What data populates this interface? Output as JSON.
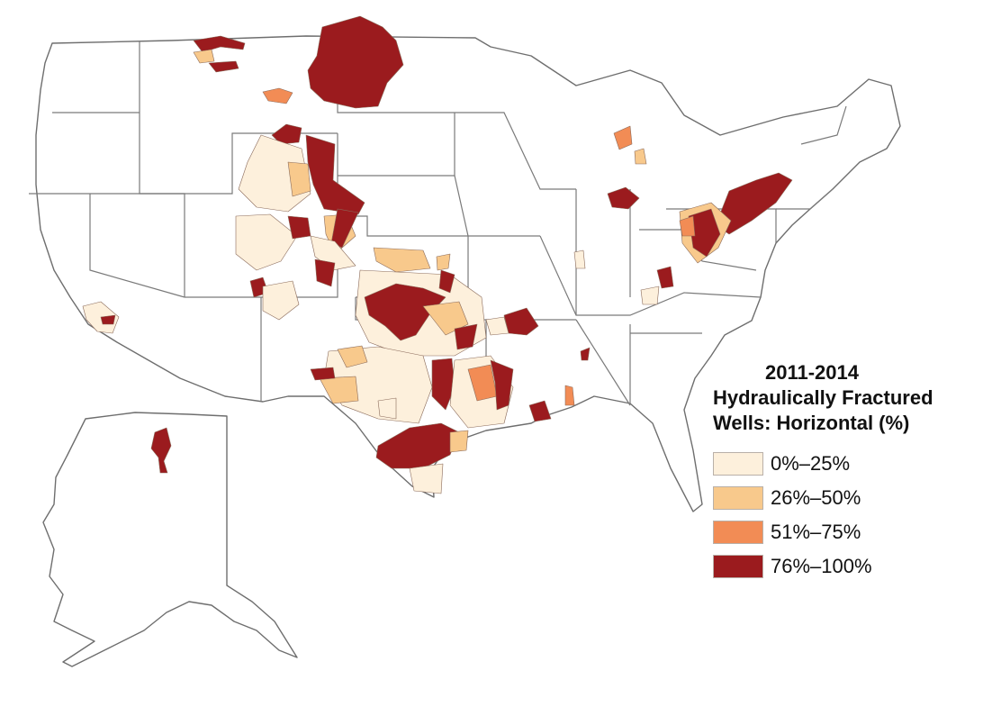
{
  "legend": {
    "title_line1": "2011-2014",
    "title_line2": "Hydraulically Fractured",
    "title_line3": "Wells: Horizontal (%)",
    "classes": [
      {
        "label": "0%–25%",
        "color": "#fdf0dc"
      },
      {
        "label": "26%–50%",
        "color": "#f8c98c"
      },
      {
        "label": "51%–75%",
        "color": "#f28c55"
      },
      {
        "label": "76%–100%",
        "color": "#9b1b1e"
      }
    ]
  },
  "map": {
    "region": "United States (Lower 48 and Alaska)",
    "basemap_colors": {
      "land": "#ffffff",
      "boundary": "#6e6e6e"
    }
  }
}
